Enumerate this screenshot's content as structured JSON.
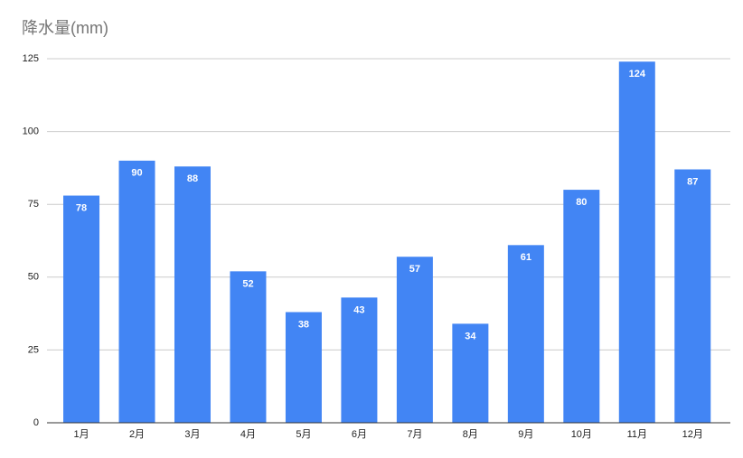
{
  "chart_data": {
    "type": "bar",
    "title": "降水量(mm)",
    "categories": [
      "1月",
      "2月",
      "3月",
      "4月",
      "5月",
      "6月",
      "7月",
      "8月",
      "9月",
      "10月",
      "11月",
      "12月"
    ],
    "values": [
      78,
      90,
      88,
      52,
      38,
      43,
      57,
      34,
      61,
      80,
      124,
      87
    ],
    "color": "#4285f4",
    "ylim": [
      0,
      125
    ],
    "yticks": [
      0,
      25,
      50,
      75,
      100,
      125
    ],
    "grid": true
  }
}
